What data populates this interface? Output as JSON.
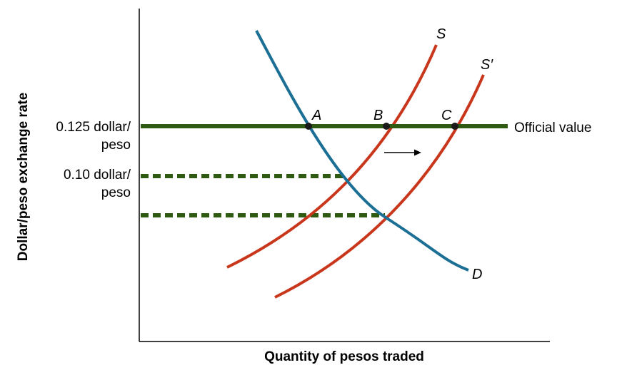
{
  "axes": {
    "y_title": "Dollar/peso exchange rate",
    "x_title": "Quantity of pesos traded"
  },
  "y_labels": {
    "official_rate": [
      "0.125 dollar/",
      "peso"
    ],
    "equilibrium_rate": [
      "0.10 dollar/",
      "peso"
    ]
  },
  "official_line_label": "Official value",
  "curves": {
    "supply": "S",
    "supply_shifted": "S′",
    "demand": "D"
  },
  "points": {
    "a": "A",
    "b": "B",
    "c": "C"
  },
  "colors": {
    "axis": "#000000",
    "official": "#2f5a12",
    "supply": "#c8361b",
    "demand": "#1b6e94",
    "point": "#1a1a1a"
  },
  "icons": {
    "shift": "right-arrow-icon"
  }
}
